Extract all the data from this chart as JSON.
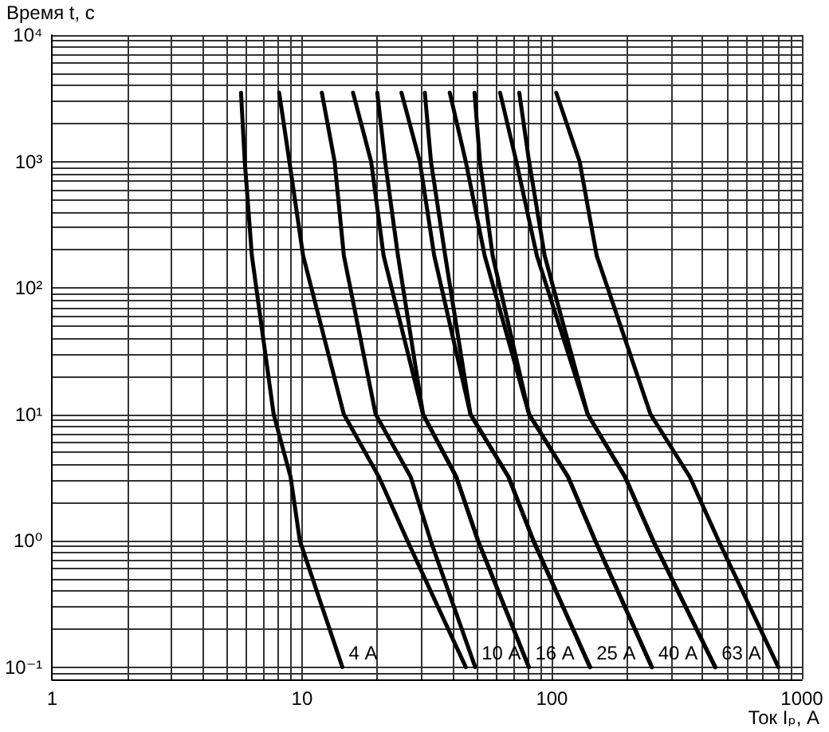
{
  "chart_data": {
    "type": "line",
    "ylabel": "Время t, с",
    "xlabel": "Ток Iₚ, А",
    "log": "xy",
    "grid": true,
    "line_style": "solid",
    "xlim": [
      1,
      1000
    ],
    "xticks": [
      1,
      10,
      100,
      1000
    ],
    "ylim": [
      0.08,
      10000
    ],
    "yticks": [
      {
        "value": 0.1,
        "label": "10⁻¹"
      },
      {
        "value": 1,
        "label": "10⁰"
      },
      {
        "value": 10,
        "label": "10¹"
      },
      {
        "value": 100,
        "label": "10²"
      },
      {
        "value": 1000,
        "label": "10³"
      },
      {
        "value": 10000,
        "label": "10⁴"
      }
    ],
    "series": [
      {
        "name": "4 А",
        "color": "#000000",
        "x": [
          5.7,
          5.9,
          6.3,
          7.7,
          9.0,
          9.8,
          14.5
        ],
        "values": [
          3500,
          1000,
          180,
          10,
          3.2,
          1,
          0.1
        ]
      },
      {
        "color": "#000000",
        "x": [
          8.1,
          8.9,
          10.1,
          14.7,
          20.3,
          26.4,
          45.2
        ],
        "values": [
          3500,
          1000,
          180,
          10,
          3.2,
          1,
          0.1
        ]
      },
      {
        "name": "10 А",
        "color": "#000000",
        "x": [
          12,
          13.5,
          14.7,
          19.7,
          27.2,
          32.7,
          49.3
        ],
        "values": [
          3500,
          1000,
          180,
          10,
          3.2,
          1,
          0.1
        ]
      },
      {
        "name": "16 А",
        "color": "#000000",
        "x": [
          16,
          18.9,
          21.2,
          30.5,
          41.4,
          50.6,
          80.8
        ],
        "values": [
          3500,
          1000,
          180,
          10,
          3.2,
          1,
          0.1
        ]
      },
      {
        "color": "#000000",
        "x": [
          20,
          21.5,
          24.2,
          30.5,
          41.4,
          50.6,
          80.8
        ],
        "values": [
          3500,
          1000,
          180,
          10,
          3.2,
          1,
          0.1
        ]
      },
      {
        "name": "25 А",
        "color": "#000000",
        "x": [
          25,
          29.6,
          33.8,
          47.2,
          67,
          84.3,
          142
        ],
        "values": [
          3500,
          1000,
          180,
          10,
          3.2,
          1,
          0.1
        ]
      },
      {
        "color": "#000000",
        "x": [
          31,
          32.8,
          37.4,
          47.2,
          67,
          84.3,
          142
        ],
        "values": [
          3500,
          1000,
          180,
          10,
          3.2,
          1,
          0.1
        ]
      },
      {
        "name": "40 А",
        "color": "#000000",
        "x": [
          39,
          45.2,
          53.8,
          81,
          116,
          149,
          251
        ],
        "values": [
          3500,
          1000,
          180,
          10,
          3.2,
          1,
          0.1
        ]
      },
      {
        "color": "#000000",
        "x": [
          49,
          51.5,
          57.9,
          81,
          116,
          149,
          251
        ],
        "values": [
          3500,
          1000,
          180,
          10,
          3.2,
          1,
          0.1
        ]
      },
      {
        "name": "63 А",
        "color": "#000000",
        "x": [
          62,
          72,
          87,
          139,
          196,
          254,
          450
        ],
        "values": [
          3500,
          1000,
          180,
          10,
          3.2,
          1,
          0.1
        ]
      },
      {
        "color": "#000000",
        "x": [
          74,
          81,
          93.5,
          139,
          196,
          254,
          450
        ],
        "values": [
          3500,
          1000,
          180,
          10,
          3.2,
          1,
          0.1
        ]
      },
      {
        "color": "#000000",
        "x": [
          104,
          129,
          151,
          248,
          356,
          464,
          805
        ],
        "values": [
          3500,
          1000,
          180,
          10,
          3.2,
          1,
          0.1
        ]
      }
    ]
  }
}
